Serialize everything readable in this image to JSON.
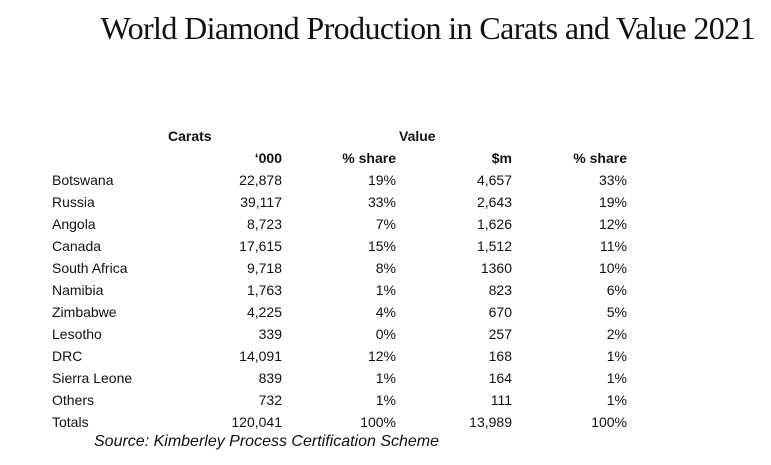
{
  "title": "World Diamond Production in Carats and Value 2021",
  "groups": {
    "carats": "Carats",
    "value": "Value"
  },
  "columns": {
    "carats_unit": "‘000",
    "carats_share": "% share",
    "value_unit": "$m",
    "value_share": "% share"
  },
  "rows": [
    {
      "country": "Botswana",
      "carats": "22,878",
      "carats_share": "19%",
      "value": "4,657",
      "value_share": "33%"
    },
    {
      "country": "Russia",
      "carats": "39,117",
      "carats_share": "33%",
      "value": "2,643",
      "value_share": "19%"
    },
    {
      "country": "Angola",
      "carats": "8,723",
      "carats_share": "7%",
      "value": "1,626",
      "value_share": "12%"
    },
    {
      "country": "Canada",
      "carats": "17,615",
      "carats_share": "15%",
      "value": "1,512",
      "value_share": "11%"
    },
    {
      "country": "South Africa",
      "carats": "9,718",
      "carats_share": "8%",
      "value": "1360",
      "value_share": "10%"
    },
    {
      "country": "Namibia",
      "carats": "1,763",
      "carats_share": "1%",
      "value": "823",
      "value_share": "6%"
    },
    {
      "country": "Zimbabwe",
      "carats": "4,225",
      "carats_share": "4%",
      "value": "670",
      "value_share": "5%"
    },
    {
      "country": "Lesotho",
      "carats": "339",
      "carats_share": "0%",
      "value": "257",
      "value_share": "2%"
    },
    {
      "country": "DRC",
      "carats": "14,091",
      "carats_share": "12%",
      "value": "168",
      "value_share": "1%"
    },
    {
      "country": "Sierra Leone",
      "carats": "839",
      "carats_share": "1%",
      "value": "164",
      "value_share": "1%"
    },
    {
      "country": "Others",
      "carats": "732",
      "carats_share": "1%",
      "value": "111",
      "value_share": "1%"
    },
    {
      "country": "Totals",
      "carats": "120,041",
      "carats_share": "100%",
      "value": "13,989",
      "value_share": "100%"
    }
  ],
  "source": "Source: Kimberley Process Certification Scheme"
}
